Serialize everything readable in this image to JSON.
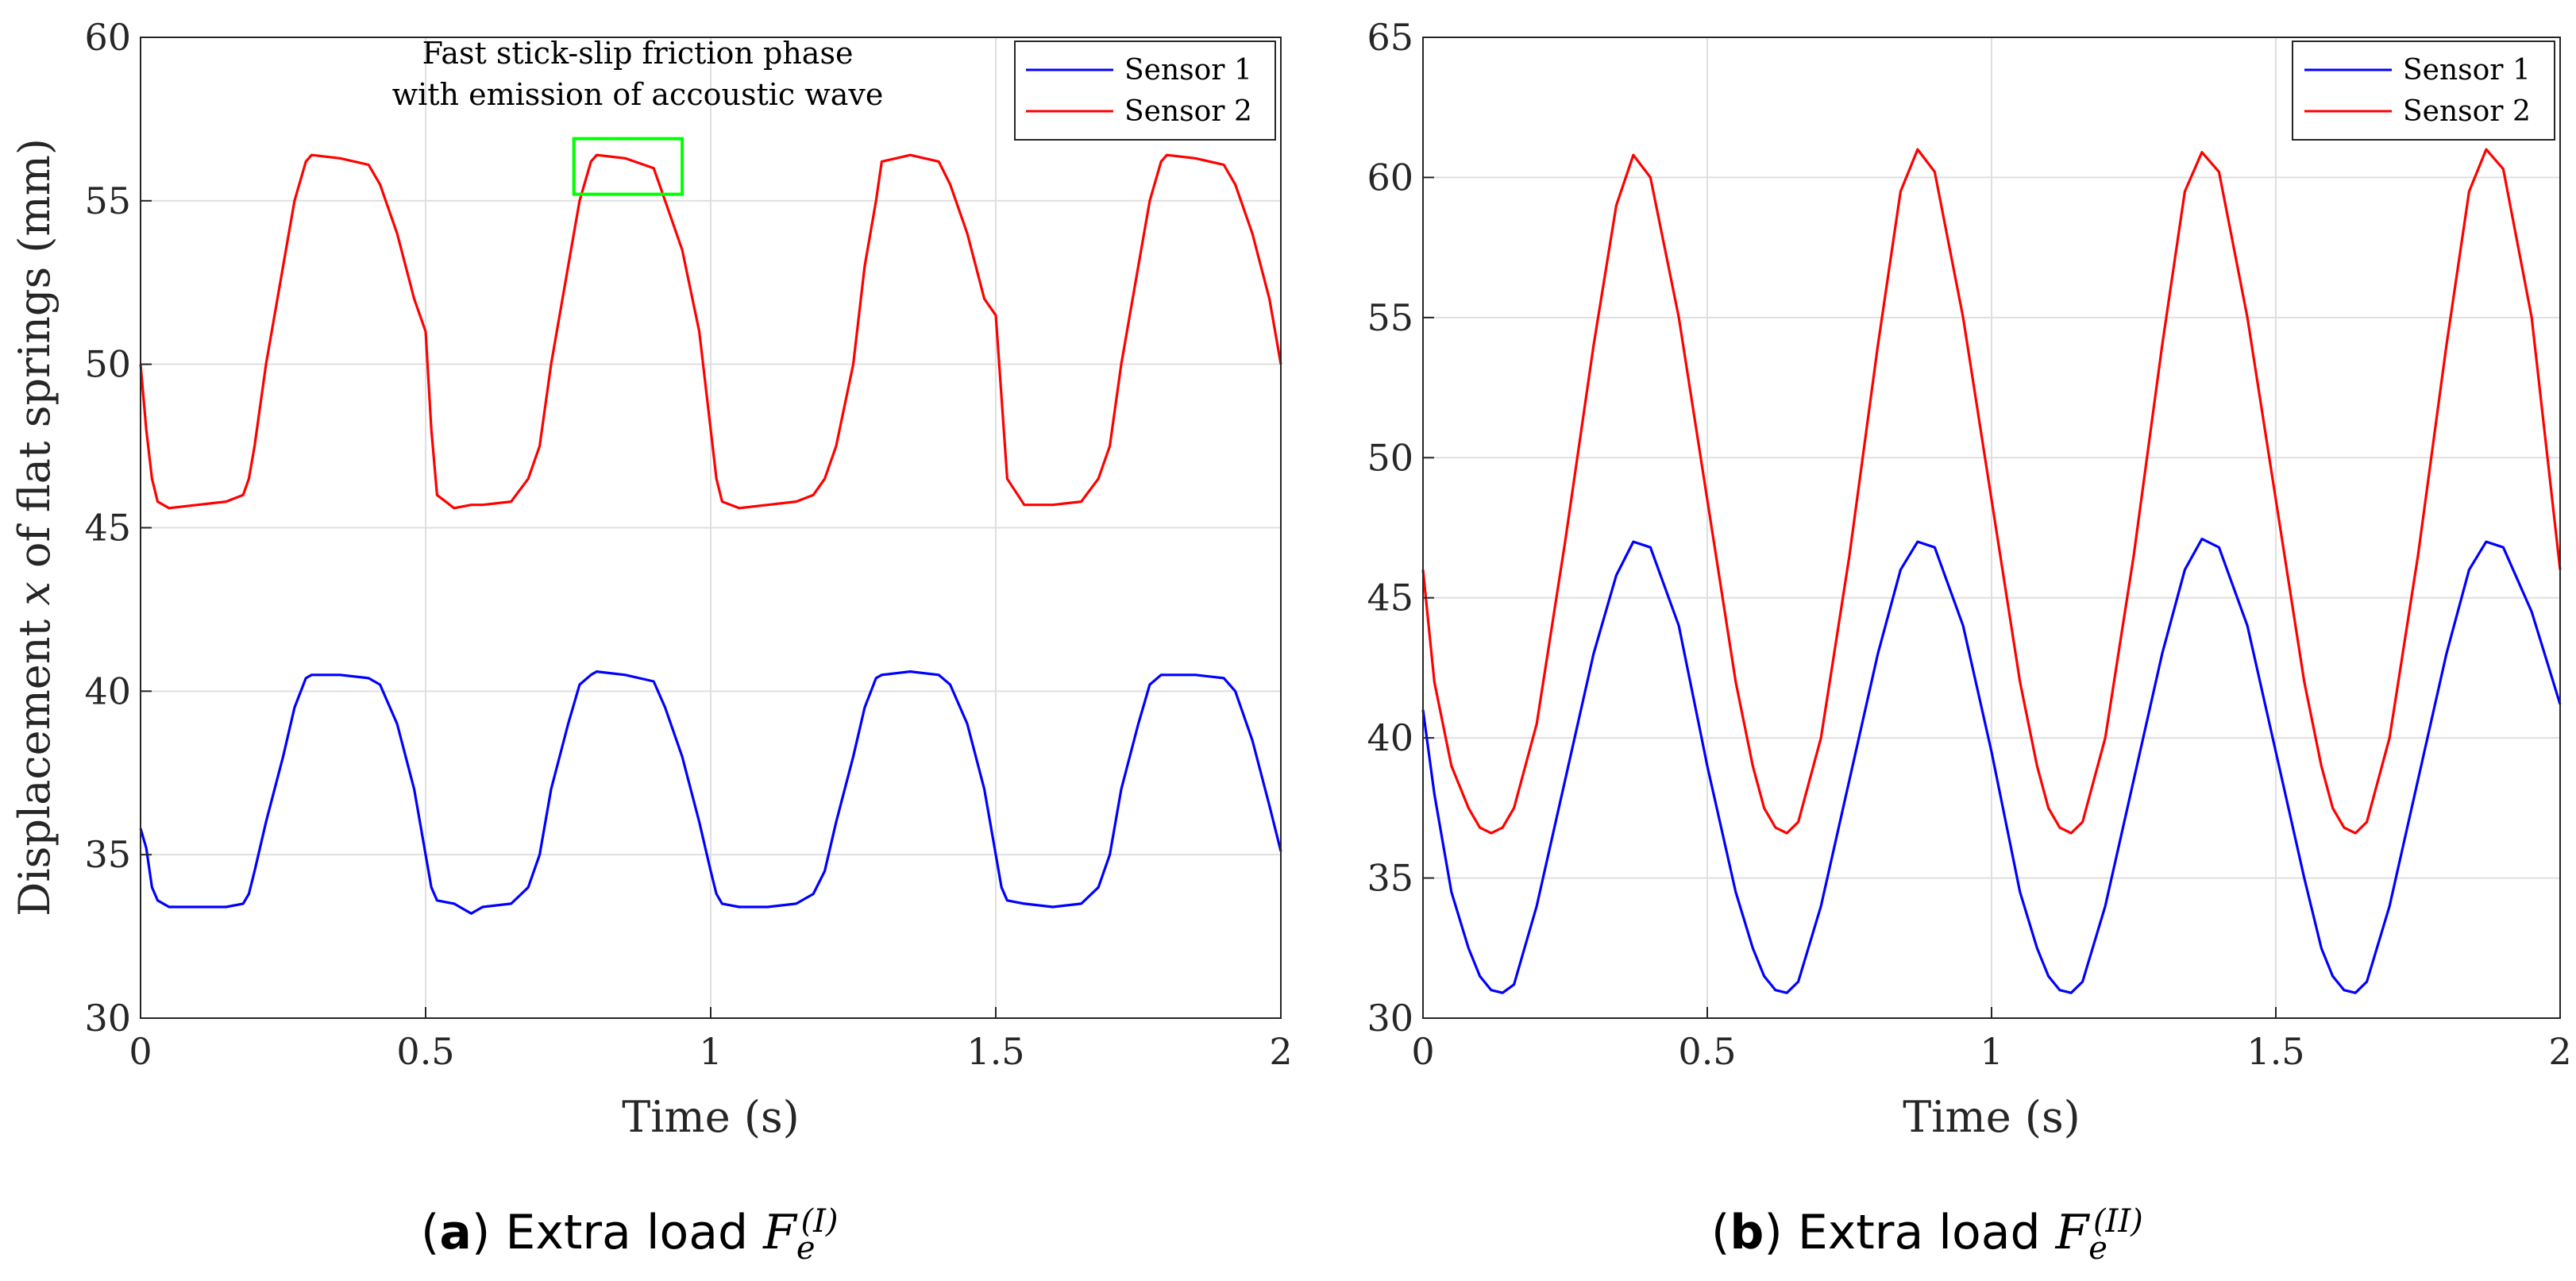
{
  "chart_data": [
    {
      "panel": "a",
      "type": "line",
      "xlabel": "Time (s)",
      "ylabel_prefix": "Displacement ",
      "ylabel_var": "x",
      "ylabel_suffix": " of flat springs (mm)",
      "xlim": [
        0,
        2
      ],
      "ylim": [
        30,
        60
      ],
      "xticks": [
        0,
        0.5,
        1,
        1.5,
        2
      ],
      "xtick_labels": [
        "0",
        "0.5",
        "1",
        "1.5",
        "2"
      ],
      "yticks": [
        30,
        35,
        40,
        45,
        50,
        55,
        60
      ],
      "ytick_labels": [
        "30",
        "35",
        "40",
        "45",
        "50",
        "55",
        "60"
      ],
      "grid": true,
      "legend": "top-right",
      "annotation": {
        "line1": "Fast stick-slip friction phase",
        "line2": "with emission of accoustic wave",
        "box_x": [
          0.76,
          0.95
        ],
        "box_y": [
          55.2,
          56.9
        ],
        "box_color": "#00ff00"
      },
      "series": [
        {
          "name": "Sensor 1",
          "color": "#0000ff",
          "x": [
            0,
            0.01,
            0.02,
            0.03,
            0.05,
            0.1,
            0.15,
            0.18,
            0.19,
            0.2,
            0.22,
            0.25,
            0.27,
            0.29,
            0.3,
            0.35,
            0.4,
            0.42,
            0.45,
            0.48,
            0.5,
            0.51,
            0.52,
            0.55,
            0.58,
            0.6,
            0.65,
            0.68,
            0.7,
            0.72,
            0.75,
            0.77,
            0.79,
            0.8,
            0.85,
            0.9,
            0.92,
            0.95,
            0.98,
            1.0,
            1.01,
            1.02,
            1.05,
            1.1,
            1.15,
            1.18,
            1.2,
            1.22,
            1.25,
            1.27,
            1.29,
            1.3,
            1.35,
            1.4,
            1.42,
            1.45,
            1.48,
            1.5,
            1.51,
            1.52,
            1.55,
            1.6,
            1.65,
            1.68,
            1.7,
            1.72,
            1.75,
            1.77,
            1.79,
            1.8,
            1.85,
            1.9,
            1.92,
            1.95,
            1.98,
            2.0
          ],
          "y": [
            35.8,
            35.2,
            34.0,
            33.6,
            33.4,
            33.4,
            33.4,
            33.5,
            33.8,
            34.5,
            36.0,
            38.0,
            39.5,
            40.4,
            40.5,
            40.5,
            40.4,
            40.2,
            39.0,
            37.0,
            35.0,
            34.0,
            33.6,
            33.5,
            33.2,
            33.4,
            33.5,
            34.0,
            35.0,
            37.0,
            39.0,
            40.2,
            40.5,
            40.6,
            40.5,
            40.3,
            39.5,
            38.0,
            36.0,
            34.5,
            33.8,
            33.5,
            33.4,
            33.4,
            33.5,
            33.8,
            34.5,
            36.0,
            38.0,
            39.5,
            40.4,
            40.5,
            40.6,
            40.5,
            40.2,
            39.0,
            37.0,
            35.0,
            34.0,
            33.6,
            33.5,
            33.4,
            33.5,
            34.0,
            35.0,
            37.0,
            39.0,
            40.2,
            40.5,
            40.5,
            40.5,
            40.4,
            40.0,
            38.5,
            36.5,
            35.1
          ]
        },
        {
          "name": "Sensor 2",
          "color": "#ff0000",
          "x": [
            0,
            0.01,
            0.02,
            0.03,
            0.05,
            0.1,
            0.15,
            0.18,
            0.19,
            0.2,
            0.22,
            0.25,
            0.27,
            0.29,
            0.3,
            0.35,
            0.4,
            0.42,
            0.45,
            0.48,
            0.5,
            0.51,
            0.52,
            0.55,
            0.58,
            0.6,
            0.65,
            0.68,
            0.7,
            0.72,
            0.75,
            0.77,
            0.79,
            0.8,
            0.85,
            0.9,
            0.92,
            0.95,
            0.98,
            1.0,
            1.01,
            1.02,
            1.05,
            1.1,
            1.15,
            1.18,
            1.2,
            1.22,
            1.25,
            1.27,
            1.29,
            1.3,
            1.35,
            1.4,
            1.42,
            1.45,
            1.48,
            1.5,
            1.51,
            1.52,
            1.55,
            1.6,
            1.65,
            1.68,
            1.7,
            1.72,
            1.75,
            1.77,
            1.79,
            1.8,
            1.85,
            1.9,
            1.92,
            1.95,
            1.98,
            2.0
          ],
          "y": [
            50.0,
            48.0,
            46.5,
            45.8,
            45.6,
            45.7,
            45.8,
            46.0,
            46.5,
            47.5,
            50.0,
            53.0,
            55.0,
            56.2,
            56.4,
            56.3,
            56.1,
            55.5,
            54.0,
            52.0,
            51.0,
            48.0,
            46.0,
            45.6,
            45.7,
            45.7,
            45.8,
            46.5,
            47.5,
            50.0,
            53.0,
            55.0,
            56.2,
            56.4,
            56.3,
            56.0,
            55.0,
            53.5,
            51.0,
            48.0,
            46.5,
            45.8,
            45.6,
            45.7,
            45.8,
            46.0,
            46.5,
            47.5,
            50.0,
            53.0,
            55.0,
            56.2,
            56.4,
            56.2,
            55.5,
            54.0,
            52.0,
            51.5,
            49.0,
            46.5,
            45.7,
            45.7,
            45.8,
            46.5,
            47.5,
            50.0,
            53.0,
            55.0,
            56.2,
            56.4,
            56.3,
            56.1,
            55.5,
            54.0,
            52.0,
            50.0
          ]
        }
      ]
    },
    {
      "panel": "b",
      "type": "line",
      "xlabel": "Time (s)",
      "xlim": [
        0,
        2
      ],
      "ylim": [
        30,
        65
      ],
      "xticks": [
        0,
        0.5,
        1,
        1.5,
        2
      ],
      "xtick_labels": [
        "0",
        "0.5",
        "1",
        "1.5",
        "2"
      ],
      "yticks": [
        30,
        35,
        40,
        45,
        50,
        55,
        60,
        65
      ],
      "ytick_labels": [
        "30",
        "35",
        "40",
        "45",
        "50",
        "55",
        "60",
        "65"
      ],
      "grid": true,
      "legend": "top-right",
      "series": [
        {
          "name": "Sensor 1",
          "color": "#0000ff",
          "x": [
            0,
            0.02,
            0.05,
            0.08,
            0.1,
            0.12,
            0.14,
            0.16,
            0.2,
            0.25,
            0.3,
            0.34,
            0.37,
            0.4,
            0.45,
            0.5,
            0.55,
            0.58,
            0.6,
            0.62,
            0.64,
            0.66,
            0.7,
            0.75,
            0.8,
            0.84,
            0.87,
            0.9,
            0.95,
            1.0,
            1.05,
            1.08,
            1.1,
            1.12,
            1.14,
            1.16,
            1.2,
            1.25,
            1.3,
            1.34,
            1.37,
            1.4,
            1.45,
            1.5,
            1.55,
            1.58,
            1.6,
            1.62,
            1.64,
            1.66,
            1.7,
            1.75,
            1.8,
            1.84,
            1.87,
            1.9,
            1.95,
            2.0
          ],
          "y": [
            41.0,
            38.0,
            34.5,
            32.5,
            31.5,
            31.0,
            30.9,
            31.2,
            34.0,
            38.5,
            43.0,
            45.8,
            47.0,
            46.8,
            44.0,
            39.0,
            34.5,
            32.5,
            31.5,
            31.0,
            30.9,
            31.3,
            34.0,
            38.5,
            43.0,
            46.0,
            47.0,
            46.8,
            44.0,
            39.5,
            34.5,
            32.5,
            31.5,
            31.0,
            30.9,
            31.3,
            34.0,
            38.5,
            43.0,
            46.0,
            47.1,
            46.8,
            44.0,
            39.5,
            35.0,
            32.5,
            31.5,
            31.0,
            30.9,
            31.3,
            34.0,
            38.5,
            43.0,
            46.0,
            47.0,
            46.8,
            44.5,
            41.2
          ]
        },
        {
          "name": "Sensor 2",
          "color": "#ff0000",
          "x": [
            0,
            0.02,
            0.05,
            0.08,
            0.1,
            0.12,
            0.14,
            0.16,
            0.2,
            0.25,
            0.3,
            0.34,
            0.37,
            0.4,
            0.45,
            0.5,
            0.55,
            0.58,
            0.6,
            0.62,
            0.64,
            0.66,
            0.7,
            0.75,
            0.8,
            0.84,
            0.87,
            0.9,
            0.95,
            1.0,
            1.05,
            1.08,
            1.1,
            1.12,
            1.14,
            1.16,
            1.2,
            1.25,
            1.3,
            1.34,
            1.37,
            1.4,
            1.45,
            1.5,
            1.55,
            1.58,
            1.6,
            1.62,
            1.64,
            1.66,
            1.7,
            1.75,
            1.8,
            1.84,
            1.87,
            1.9,
            1.95,
            2.0
          ],
          "y": [
            46.0,
            42.0,
            39.0,
            37.5,
            36.8,
            36.6,
            36.8,
            37.5,
            40.5,
            47.0,
            54.0,
            59.0,
            60.8,
            60.0,
            55.0,
            48.5,
            42.0,
            39.0,
            37.5,
            36.8,
            36.6,
            37.0,
            40.0,
            46.5,
            54.0,
            59.5,
            61.0,
            60.2,
            55.0,
            48.5,
            42.0,
            39.0,
            37.5,
            36.8,
            36.6,
            37.0,
            40.0,
            46.5,
            54.0,
            59.5,
            60.9,
            60.2,
            55.0,
            48.5,
            42.0,
            39.0,
            37.5,
            36.8,
            36.6,
            37.0,
            40.0,
            46.5,
            54.0,
            59.5,
            61.0,
            60.3,
            55.0,
            46.0
          ]
        }
      ]
    }
  ],
  "captions": {
    "a_label": "a",
    "b_label": "b",
    "text": "Extra load ",
    "var": "F",
    "sub": "e",
    "a_sup": "(I)",
    "b_sup": "(II)"
  }
}
